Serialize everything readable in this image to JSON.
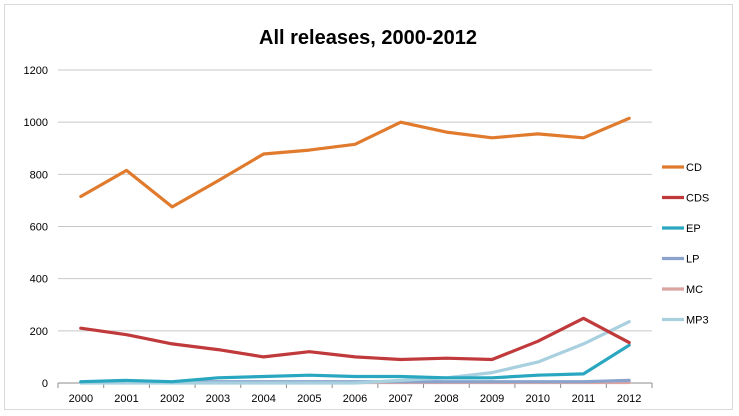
{
  "chart_data": {
    "type": "line",
    "title": "All releases, 2000-2012",
    "x": [
      "2000",
      "2001",
      "2002",
      "2003",
      "2004",
      "2005",
      "2006",
      "2007",
      "2008",
      "2009",
      "2010",
      "2011",
      "2012"
    ],
    "ylim": [
      0,
      1200
    ],
    "yticks": [
      0,
      200,
      400,
      600,
      800,
      1000,
      1200
    ],
    "grid": true,
    "legend_position": "right",
    "series": [
      {
        "name": "CD",
        "color": "#e07b2e",
        "values": [
          715,
          815,
          675,
          775,
          878,
          893,
          915,
          1000,
          962,
          940,
          955,
          940,
          1015
        ]
      },
      {
        "name": "CDS",
        "color": "#c0393b",
        "values": [
          210,
          185,
          150,
          128,
          100,
          120,
          100,
          90,
          95,
          90,
          160,
          248,
          155
        ]
      },
      {
        "name": "EP",
        "color": "#2aa7c0",
        "values": [
          5,
          10,
          5,
          20,
          25,
          30,
          25,
          25,
          20,
          20,
          30,
          35,
          145
        ]
      },
      {
        "name": "LP",
        "color": "#8aa3cc",
        "values": [
          3,
          5,
          3,
          5,
          5,
          5,
          5,
          5,
          5,
          5,
          5,
          5,
          10
        ]
      },
      {
        "name": "MC",
        "color": "#dba4a0",
        "values": [
          2,
          2,
          2,
          2,
          2,
          2,
          2,
          2,
          2,
          2,
          2,
          2,
          2
        ]
      },
      {
        "name": "MP3",
        "color": "#a8d0df",
        "values": [
          0,
          0,
          0,
          0,
          0,
          0,
          0,
          10,
          20,
          40,
          80,
          150,
          235
        ]
      }
    ]
  }
}
